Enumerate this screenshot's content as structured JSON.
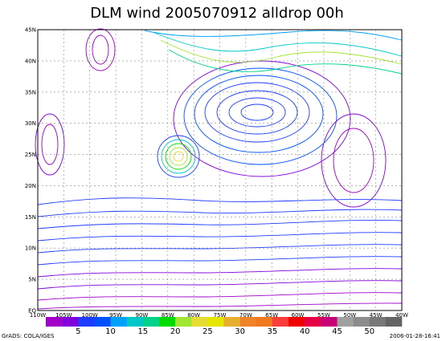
{
  "title": "DLM wind 2005070912 alldrop 00h",
  "lat_labels": [
    "45N",
    "40N",
    "35N",
    "30N",
    "25N",
    "20N",
    "15N",
    "10N",
    "5N",
    "EQ"
  ],
  "lon_labels": [
    "110W",
    "105W",
    "100W",
    "95W",
    "90W",
    "85W",
    "80W",
    "75W",
    "70W",
    "65W",
    "60W",
    "55W",
    "50W",
    "45W",
    "40W"
  ],
  "colorbar": {
    "colors": [
      "#a000c8",
      "#8200dc",
      "#1e3cff",
      "#0050ff",
      "#00a0ff",
      "#00c8c8",
      "#00d28c",
      "#00dc00",
      "#a0e632",
      "#e6dc32",
      "#e6e600",
      "#e6af2d",
      "#f08228",
      "#f0781e",
      "#fa3c3c",
      "#f00000",
      "#e60046",
      "#c80078",
      "#a0a0a0",
      "#8c8c8c",
      "#787878",
      "#646464"
    ],
    "labels": [
      5,
      10,
      15,
      20,
      25,
      30,
      35,
      40,
      45,
      50
    ]
  },
  "footer_left": "GrADS: COLA/IGES",
  "footer_right": "2006-01-28-16:41"
}
